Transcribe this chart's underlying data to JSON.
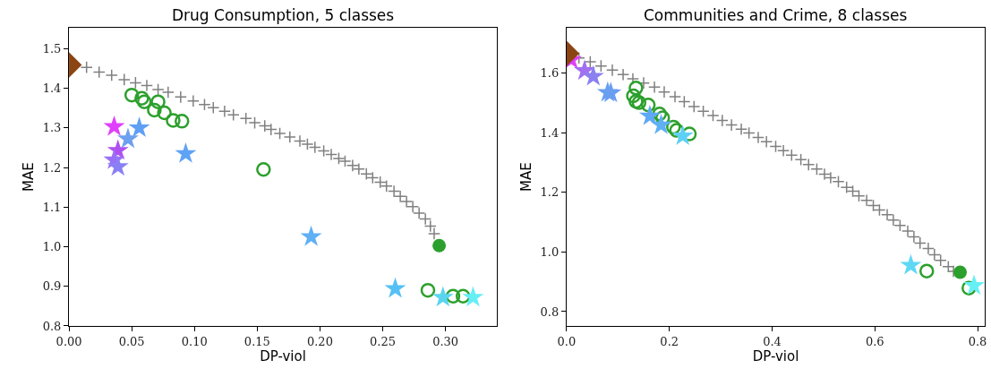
{
  "chart_data": [
    {
      "type": "scatter",
      "title": "Drug Consumption, 5 classes",
      "xlabel": "DP-viol",
      "ylabel": "MAE",
      "xlim": [
        0,
        0.341
      ],
      "ylim": [
        0.8,
        1.552
      ],
      "xticks": [
        {
          "value": 0,
          "label": "0.00"
        },
        {
          "value": 0.05,
          "label": "0.05"
        },
        {
          "value": 0.1,
          "label": "0.10"
        },
        {
          "value": 0.15,
          "label": "0.15"
        },
        {
          "value": 0.2,
          "label": "0.20"
        },
        {
          "value": 0.25,
          "label": "0.25"
        },
        {
          "value": 0.3,
          "label": "0.30"
        }
      ],
      "yticks": [
        {
          "value": 0.8,
          "label": "0.8"
        },
        {
          "value": 0.9,
          "label": "0.9"
        },
        {
          "value": 1.0,
          "label": "1.0"
        },
        {
          "value": 1.1,
          "label": "1.1"
        },
        {
          "value": 1.2,
          "label": "1.2"
        },
        {
          "value": 1.3,
          "label": "1.3"
        },
        {
          "value": 1.4,
          "label": "1.4"
        },
        {
          "value": 1.5,
          "label": "1.5"
        }
      ],
      "series": [
        {
          "marker": "cross",
          "color": "#808080",
          "x": [
            0.014,
            0.024,
            0.034,
            0.044,
            0.053,
            0.062,
            0.071,
            0.079,
            0.089,
            0.099,
            0.108,
            0.115,
            0.124,
            0.131,
            0.141,
            0.148,
            0.156,
            0.161,
            0.168,
            0.176,
            0.184,
            0.19,
            0.196,
            0.203,
            0.209,
            0.215,
            0.22,
            0.226,
            0.231,
            0.237,
            0.242,
            0.248,
            0.253,
            0.259,
            0.264,
            0.269,
            0.274,
            0.279,
            0.284,
            0.288,
            0.291
          ],
          "values": [
            1.453,
            1.441,
            1.433,
            1.422,
            1.414,
            1.407,
            1.397,
            1.39,
            1.378,
            1.368,
            1.359,
            1.351,
            1.342,
            1.333,
            1.324,
            1.313,
            1.305,
            1.296,
            1.286,
            1.277,
            1.267,
            1.259,
            1.251,
            1.242,
            1.233,
            1.223,
            1.216,
            1.205,
            1.196,
            1.184,
            1.174,
            1.163,
            1.153,
            1.14,
            1.127,
            1.114,
            1.101,
            1.085,
            1.07,
            1.052,
            1.033
          ]
        },
        {
          "marker": "circle-open",
          "color": "#2ca02c",
          "x": [
            0.05,
            0.058,
            0.06,
            0.068,
            0.071,
            0.076,
            0.083,
            0.09,
            0.155,
            0.286,
            0.306,
            0.314
          ],
          "values": [
            1.383,
            1.375,
            1.366,
            1.345,
            1.366,
            1.338,
            1.319,
            1.317,
            1.195,
            0.89,
            0.875,
            0.875
          ]
        },
        {
          "marker": "star",
          "colors": [
            "#e040fb",
            "#b050f0",
            "#9a70f5",
            "#8a80f5",
            "#6ea0f0",
            "#5fa0f5",
            "#5fa3f5",
            "#5fb0f5",
            "#55c0f5",
            "#5ad5f0",
            "#66eef5"
          ],
          "x": [
            0.036,
            0.039,
            0.036,
            0.039,
            0.047,
            0.056,
            0.093,
            0.193,
            0.26,
            0.298,
            0.322
          ],
          "values": [
            1.303,
            1.243,
            1.219,
            1.202,
            1.272,
            1.3,
            1.235,
            1.025,
            0.894,
            0.872,
            0.872
          ]
        },
        {
          "marker": "circle",
          "color": "#2ca02c",
          "x": [
            0.295
          ],
          "values": [
            1.003
          ]
        },
        {
          "marker": "diamond",
          "color": "#8b4513",
          "x": [
            0
          ],
          "values": [
            1.459
          ]
        }
      ]
    },
    {
      "type": "scatter",
      "title": "Communities and Crime, 8 classes",
      "xlabel": "DP-viol",
      "ylabel": "MAE",
      "xlim": [
        0,
        0.814
      ],
      "ylim": [
        0.752,
        1.751
      ],
      "xticks": [
        {
          "value": 0,
          "label": "0.0"
        },
        {
          "value": 0.2,
          "label": "0.2"
        },
        {
          "value": 0.4,
          "label": "0.4"
        },
        {
          "value": 0.6,
          "label": "0.6"
        },
        {
          "value": 0.8,
          "label": "0.8"
        }
      ],
      "yticks": [
        {
          "value": 0.8,
          "label": "0.8"
        },
        {
          "value": 1.0,
          "label": "1.0"
        },
        {
          "value": 1.2,
          "label": "1.2"
        },
        {
          "value": 1.4,
          "label": "1.4"
        },
        {
          "value": 1.6,
          "label": "1.6"
        }
      ],
      "series": [
        {
          "marker": "cross",
          "color": "#808080",
          "x": [
            0.024,
            0.046,
            0.067,
            0.089,
            0.11,
            0.129,
            0.15,
            0.171,
            0.19,
            0.211,
            0.229,
            0.248,
            0.266,
            0.285,
            0.303,
            0.321,
            0.34,
            0.355,
            0.373,
            0.389,
            0.407,
            0.422,
            0.438,
            0.456,
            0.471,
            0.487,
            0.502,
            0.514,
            0.529,
            0.545,
            0.557,
            0.569,
            0.584,
            0.597,
            0.609,
            0.624,
            0.636,
            0.649,
            0.664,
            0.676,
            0.688,
            0.704,
            0.716,
            0.728,
            0.743,
            0.753
          ],
          "values": [
            1.651,
            1.638,
            1.624,
            1.61,
            1.595,
            1.581,
            1.567,
            1.553,
            1.537,
            1.521,
            1.504,
            1.488,
            1.472,
            1.458,
            1.441,
            1.426,
            1.412,
            1.399,
            1.384,
            1.37,
            1.354,
            1.34,
            1.325,
            1.31,
            1.293,
            1.278,
            1.261,
            1.249,
            1.236,
            1.217,
            1.204,
            1.188,
            1.173,
            1.156,
            1.141,
            1.125,
            1.107,
            1.089,
            1.07,
            1.051,
            1.03,
            1.012,
            0.991,
            0.972,
            0.951,
            0.935
          ]
        },
        {
          "marker": "circle-open",
          "color": "#2ca02c",
          "x": [
            0.135,
            0.13,
            0.135,
            0.141,
            0.159,
            0.181,
            0.187,
            0.208,
            0.214,
            0.239,
            0.701,
            0.783
          ],
          "values": [
            1.55,
            1.524,
            1.505,
            1.501,
            1.493,
            1.463,
            1.45,
            1.419,
            1.408,
            1.396,
            0.936,
            0.879
          ]
        },
        {
          "marker": "star",
          "colors": [
            "#e040fb",
            "#a070f0",
            "#8a80f0",
            "#6a9ef0",
            "#6a9ef0",
            "#5fa8f5",
            "#5fb0f5",
            "#5fd0f5",
            "#5fd8f5",
            "#66f0f5"
          ],
          "x": [
            0.009,
            0.035,
            0.052,
            0.08,
            0.086,
            0.162,
            0.184,
            0.226,
            0.67,
            0.793
          ],
          "values": [
            1.645,
            1.608,
            1.589,
            1.535,
            1.533,
            1.456,
            1.426,
            1.389,
            0.955,
            0.887
          ]
        },
        {
          "marker": "circle",
          "color": "#2ca02c",
          "x": [
            0.766
          ],
          "values": [
            0.932
          ]
        },
        {
          "marker": "diamond",
          "color": "#8b4513",
          "x": [
            0
          ],
          "values": [
            1.666
          ]
        }
      ]
    }
  ]
}
